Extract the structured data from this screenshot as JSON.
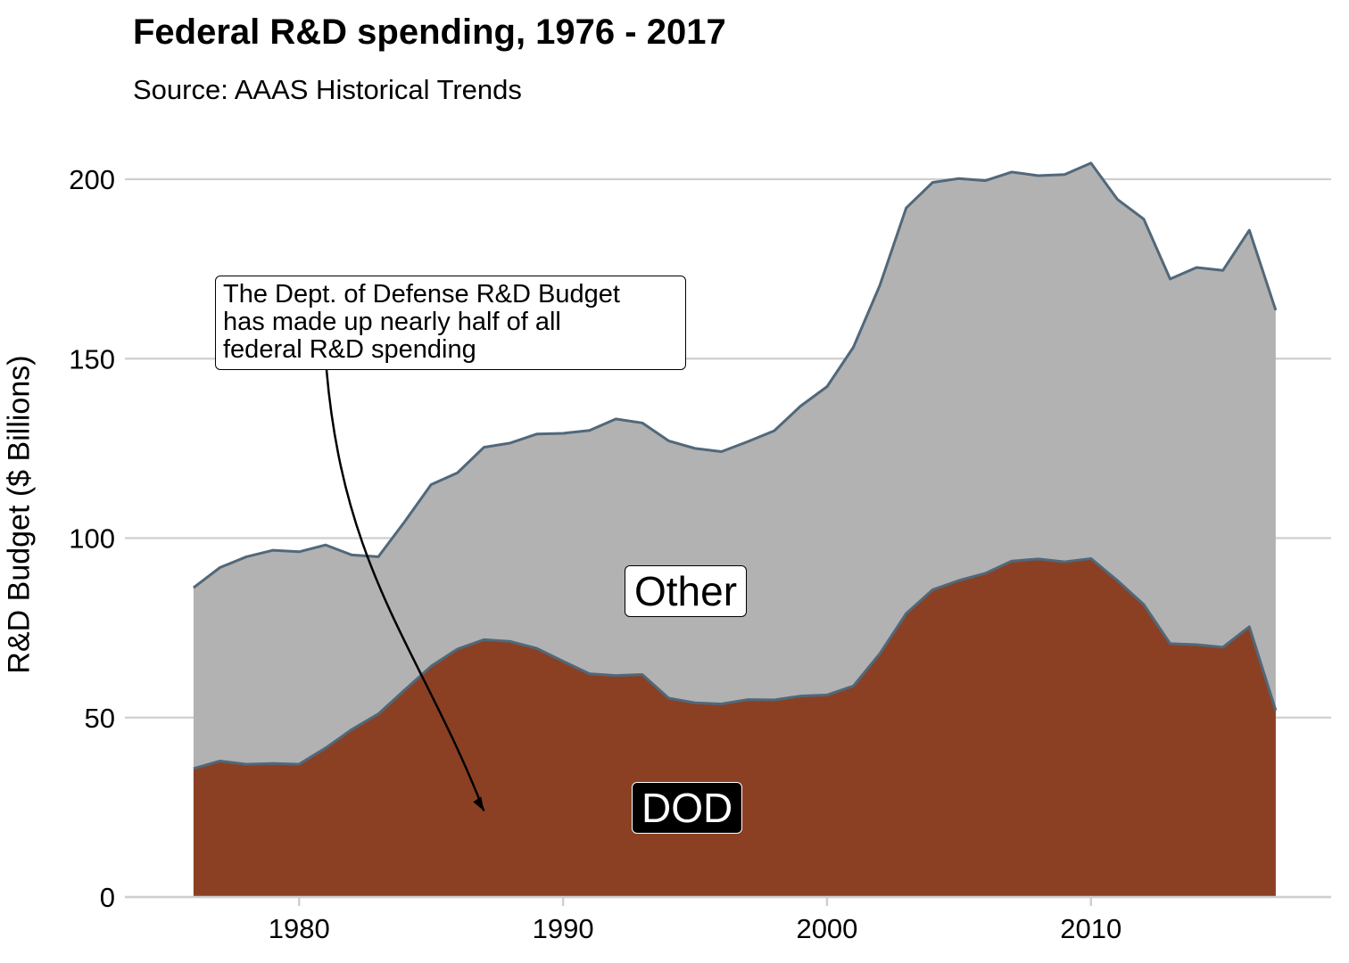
{
  "chart_data": {
    "type": "area",
    "title": "Federal R&D spending, 1976 - 2017",
    "subtitle": "Source: AAAS Historical Trends",
    "xlabel": "",
    "ylabel": "R&D Budget ($ Billions)",
    "xlim": [
      1973.4,
      2019.1
    ],
    "ylim": [
      0,
      200
    ],
    "grid": "horizontal",
    "stacked": true,
    "x_ticks": [
      "1980",
      "1990",
      "2000",
      "2010"
    ],
    "y_ticks": [
      "0",
      "50",
      "100",
      "150",
      "200"
    ],
    "x": [
      1976,
      1977,
      1978,
      1979,
      1980,
      1981,
      1982,
      1983,
      1984,
      1985,
      1986,
      1987,
      1988,
      1989,
      1990,
      1991,
      1992,
      1993,
      1994,
      1995,
      1996,
      1997,
      1998,
      1999,
      2000,
      2001,
      2002,
      2003,
      2004,
      2005,
      2006,
      2007,
      2008,
      2009,
      2010,
      2011,
      2012,
      2013,
      2014,
      2015,
      2016,
      2017
    ],
    "series": [
      {
        "name": "DOD",
        "color": "#8b4023",
        "values": [
          35.8,
          37.9,
          37.0,
          37.2,
          37.0,
          41.5,
          46.7,
          51.0,
          57.7,
          64.3,
          69.1,
          71.7,
          71.2,
          69.3,
          65.7,
          62.2,
          61.7,
          62.0,
          55.4,
          54.1,
          53.8,
          55.0,
          54.9,
          56.0,
          56.3,
          58.8,
          67.8,
          79.0,
          85.6,
          88.2,
          90.2,
          93.6,
          94.2,
          93.4,
          94.3,
          88.2,
          81.5,
          70.6,
          70.3,
          69.6,
          75.3,
          52.0
        ]
      },
      {
        "name": "Other",
        "color": "#b2b2b2",
        "values": [
          50.4,
          53.9,
          57.8,
          59.4,
          59.2,
          56.6,
          48.6,
          43.8,
          46.9,
          50.6,
          49.1,
          53.6,
          55.3,
          59.7,
          63.5,
          67.8,
          71.5,
          70.1,
          71.7,
          70.9,
          70.3,
          71.9,
          75.0,
          80.8,
          85.9,
          94.4,
          102.6,
          113.0,
          113.5,
          112.0,
          109.4,
          108.4,
          106.8,
          107.9,
          110.2,
          106.2,
          107.4,
          101.6,
          105.1,
          105.0,
          110.5,
          111.5
        ]
      }
    ],
    "line_color": "#51687a",
    "annotations": [
      {
        "text": "The Dept. of Defense R&D Budget has made up nearly half of all federal R&D spending",
        "arrow_to": [
          1987,
          24
        ]
      }
    ]
  },
  "annotation_lines": [
    "The Dept. of Defense R&D Budget",
    "has made up nearly half of all",
    "federal R&D spending"
  ],
  "series_labels": {
    "other": "Other",
    "dod": "DOD"
  }
}
